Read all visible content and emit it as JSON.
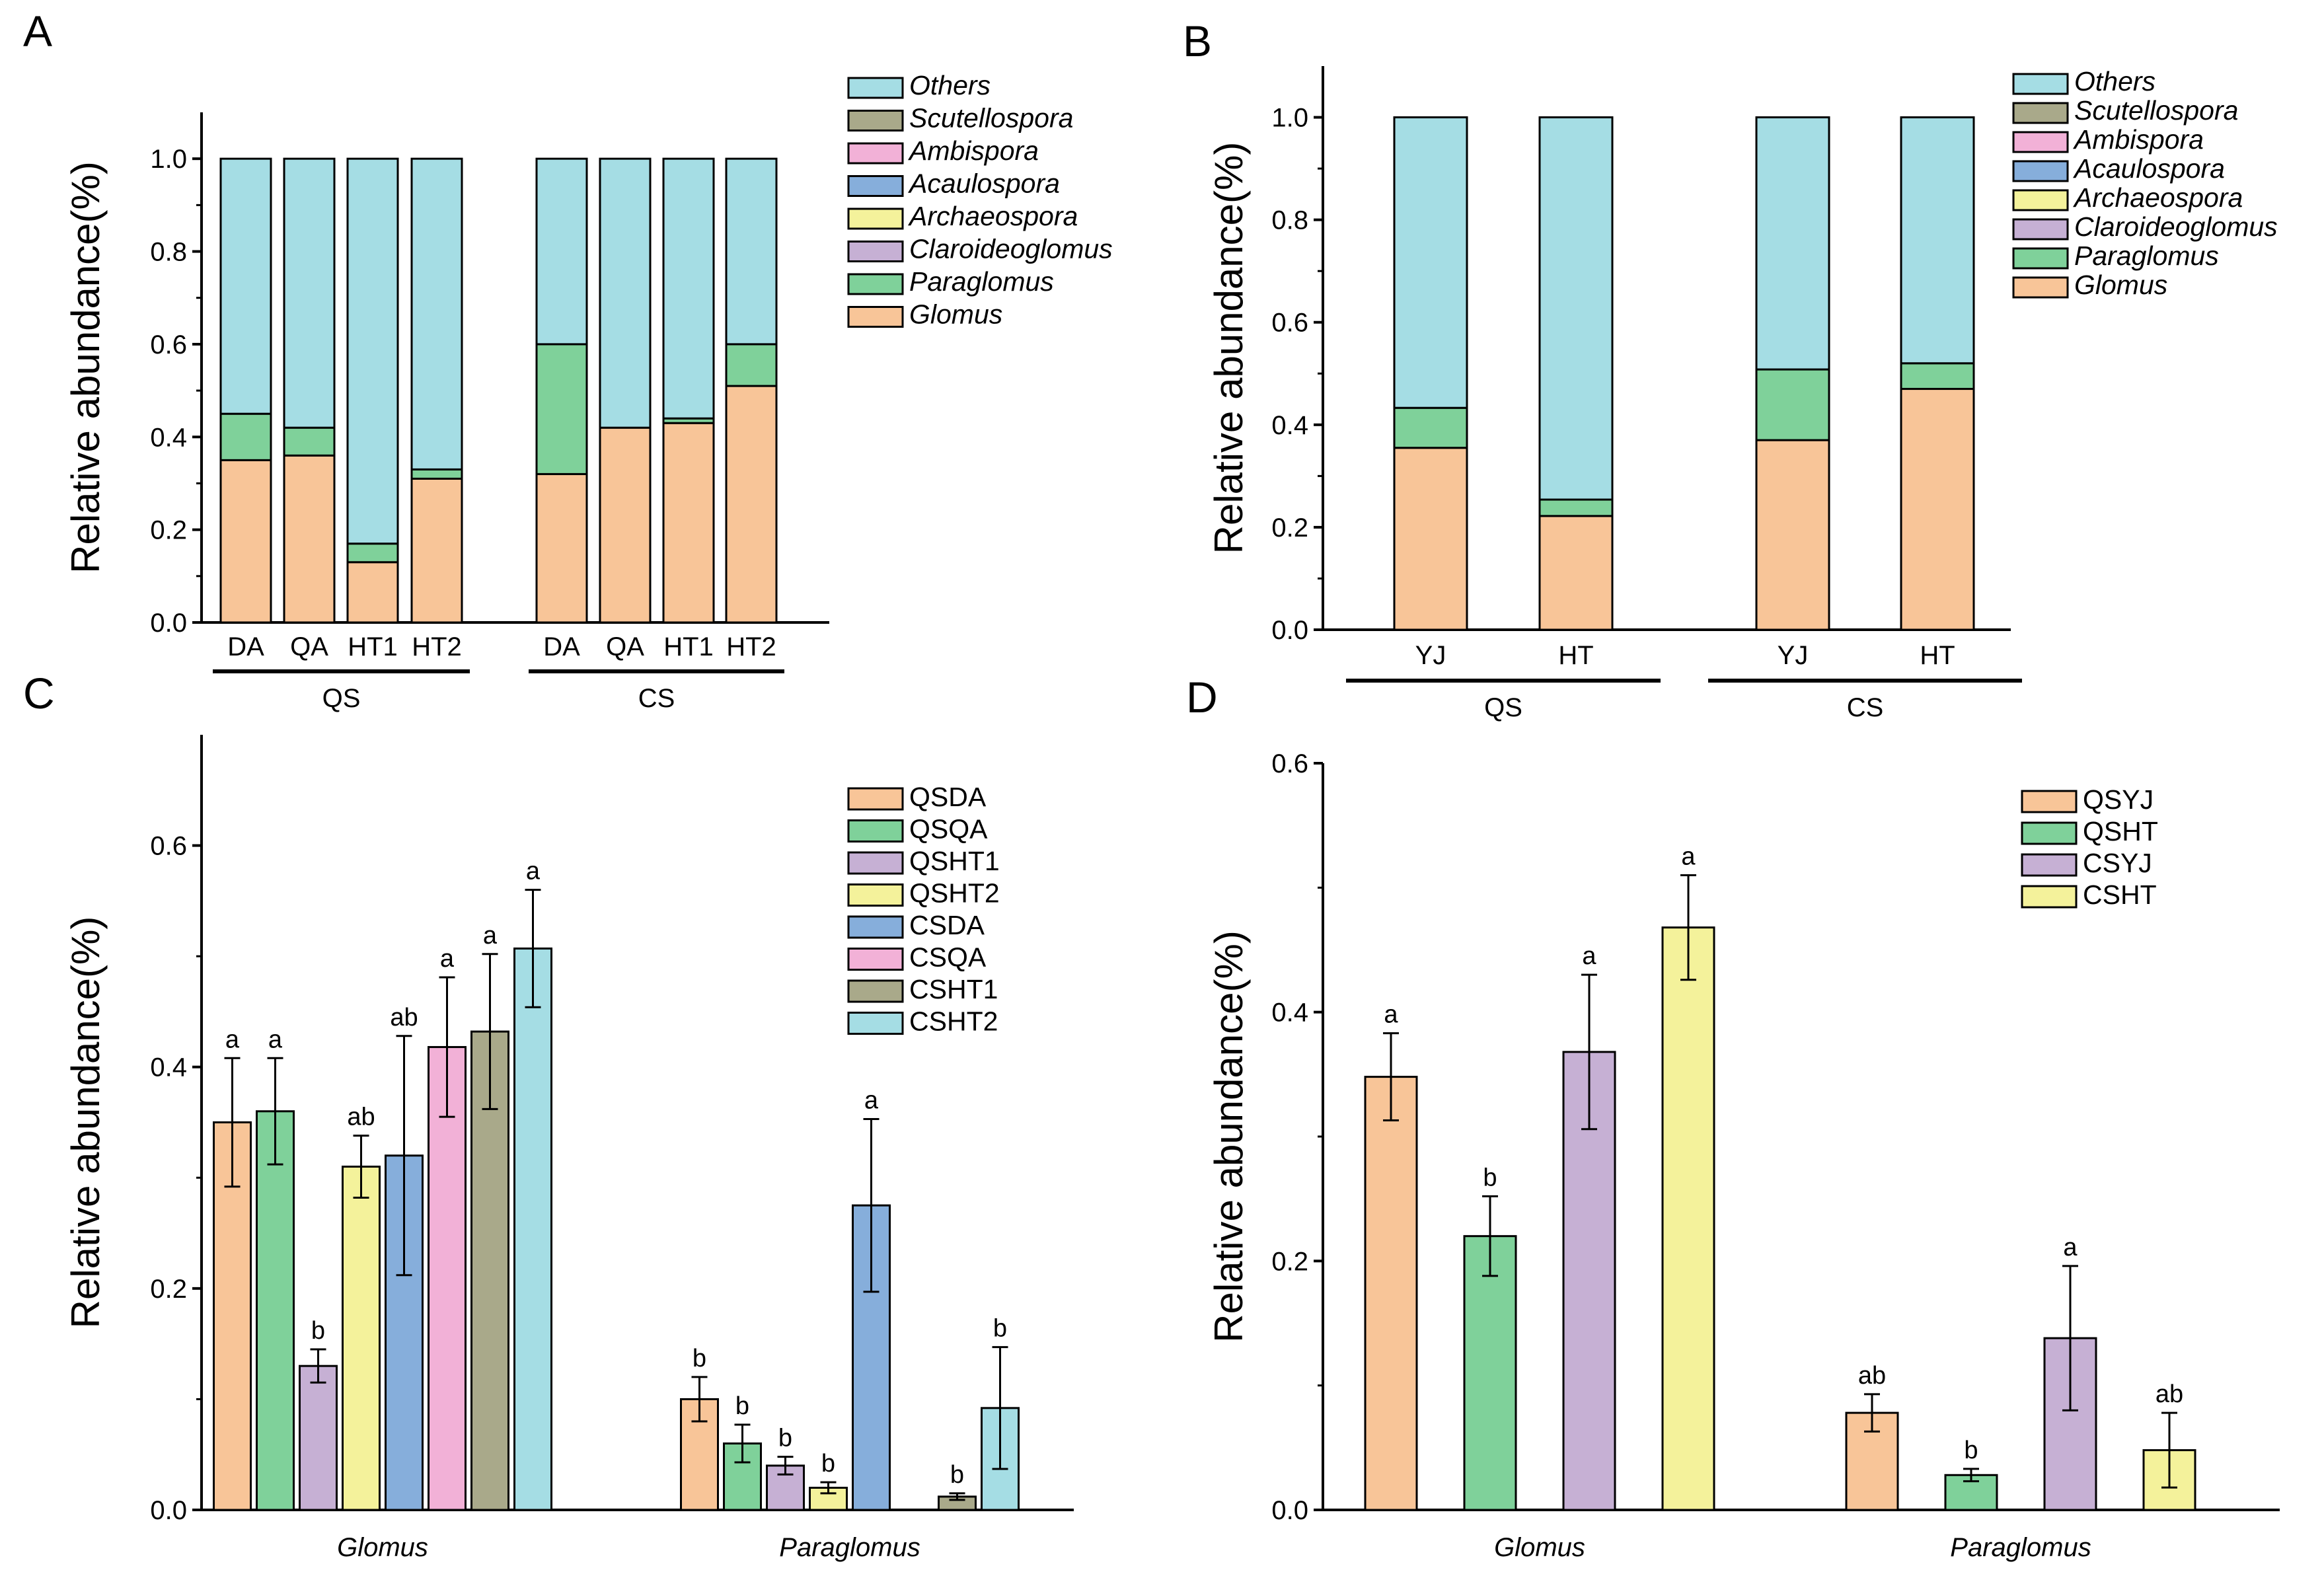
{
  "colors": {
    "Others": "#a5dde4",
    "Scutellospora": "#a9a98a",
    "Ambispora": "#f2b1d7",
    "Acaulospora": "#86aedb",
    "Archaeospora": "#f4f29b",
    "Claroideoglomus": "#c6b0d4",
    "Paraglomus": "#7fd19a",
    "Glomus": "#f8c598",
    "QSDA": "#f8c598",
    "QSQA": "#7fd19a",
    "QSHT1": "#c6b0d4",
    "QSHT2": "#f4f29b",
    "CSDA": "#86aedb",
    "CSQA": "#f2b1d7",
    "CSHT1": "#a9a98a",
    "CSHT2": "#a5dde4",
    "QSYJ": "#f8c598",
    "QSHT": "#7fd19a",
    "CSYJ": "#c6b0d4",
    "CSHT": "#f4f29b"
  },
  "chart_data": [
    {
      "panel": "A",
      "type": "bar",
      "stacked": true,
      "ylabel": "Relative abundance(%)",
      "ylim": [
        0,
        1.1
      ],
      "yticks": [
        "0.0",
        "0.2",
        "0.4",
        "0.6",
        "0.8",
        "1.0"
      ],
      "categories": [
        "DA",
        "QA",
        "HT1",
        "HT2",
        "DA",
        "QA",
        "HT1",
        "HT2"
      ],
      "groups": [
        {
          "name": "QS",
          "from": 0,
          "to": 3
        },
        {
          "name": "CS",
          "from": 4,
          "to": 7
        }
      ],
      "legend": [
        "Others",
        "Scutellospora",
        "Ambispora",
        "Acaulospora",
        "Archaeospora",
        "Claroideoglomus",
        "Paraglomus",
        "Glomus"
      ],
      "series": [
        {
          "name": "Glomus",
          "values": [
            0.35,
            0.36,
            0.13,
            0.31,
            0.32,
            0.42,
            0.43,
            0.51
          ]
        },
        {
          "name": "Paraglomus",
          "values": [
            0.1,
            0.06,
            0.04,
            0.02,
            0.28,
            0.0,
            0.01,
            0.09
          ]
        },
        {
          "name": "Claroideoglomus",
          "values": [
            0,
            0,
            0,
            0,
            0,
            0,
            0,
            0
          ]
        },
        {
          "name": "Archaeospora",
          "values": [
            0,
            0,
            0,
            0,
            0,
            0,
            0,
            0
          ]
        },
        {
          "name": "Acaulospora",
          "values": [
            0,
            0,
            0,
            0,
            0,
            0,
            0,
            0
          ]
        },
        {
          "name": "Ambispora",
          "values": [
            0,
            0,
            0,
            0,
            0,
            0,
            0,
            0
          ]
        },
        {
          "name": "Scutellospora",
          "values": [
            0,
            0,
            0,
            0,
            0,
            0,
            0,
            0
          ]
        },
        {
          "name": "Others",
          "values": [
            0.55,
            0.58,
            0.83,
            0.67,
            0.4,
            0.58,
            0.56,
            0.4
          ]
        }
      ]
    },
    {
      "panel": "B",
      "type": "bar",
      "stacked": true,
      "ylabel": "Relative abundance(%)",
      "ylim": [
        0,
        1.1
      ],
      "yticks": [
        "0.0",
        "0.2",
        "0.4",
        "0.6",
        "0.8",
        "1.0"
      ],
      "categories": [
        "YJ",
        "HT",
        "YJ",
        "HT"
      ],
      "groups": [
        {
          "name": "QS",
          "from": 0,
          "to": 1
        },
        {
          "name": "CS",
          "from": 2,
          "to": 3
        }
      ],
      "legend": [
        "Others",
        "Scutellospora",
        "Ambispora",
        "Acaulospora",
        "Archaeospora",
        "Claroideoglomus",
        "Paraglomus",
        "Glomus"
      ],
      "series": [
        {
          "name": "Glomus",
          "values": [
            0.355,
            0.222,
            0.37,
            0.47
          ]
        },
        {
          "name": "Paraglomus",
          "values": [
            0.078,
            0.032,
            0.138,
            0.05
          ]
        },
        {
          "name": "Claroideoglomus",
          "values": [
            0,
            0,
            0,
            0
          ]
        },
        {
          "name": "Archaeospora",
          "values": [
            0,
            0,
            0,
            0
          ]
        },
        {
          "name": "Acaulospora",
          "values": [
            0,
            0,
            0,
            0
          ]
        },
        {
          "name": "Ambispora",
          "values": [
            0,
            0,
            0,
            0
          ]
        },
        {
          "name": "Scutellospora",
          "values": [
            0,
            0,
            0,
            0
          ]
        },
        {
          "name": "Others",
          "values": [
            0.567,
            0.746,
            0.492,
            0.48
          ]
        }
      ]
    },
    {
      "panel": "C",
      "type": "bar",
      "ylabel": "Relative abundance(%)",
      "ylim": [
        0,
        0.7
      ],
      "yticks": [
        "0.0",
        "0.2",
        "0.4",
        "0.6"
      ],
      "categories": [
        "Glomus",
        "Paraglomus"
      ],
      "series": [
        {
          "name": "QSDA",
          "values": [
            0.35,
            0.1
          ],
          "errors": [
            0.058,
            0.02
          ],
          "letters": [
            "a",
            "b"
          ]
        },
        {
          "name": "QSQA",
          "values": [
            0.36,
            0.06
          ],
          "errors": [
            0.048,
            0.017
          ],
          "letters": [
            "a",
            "b"
          ]
        },
        {
          "name": "QSHT1",
          "values": [
            0.13,
            0.04
          ],
          "errors": [
            0.015,
            0.008
          ],
          "letters": [
            "b",
            "b"
          ]
        },
        {
          "name": "QSHT2",
          "values": [
            0.31,
            0.02
          ],
          "errors": [
            0.028,
            0.005
          ],
          "letters": [
            "ab",
            "b"
          ]
        },
        {
          "name": "CSDA",
          "values": [
            0.32,
            0.275
          ],
          "errors": [
            0.108,
            0.078
          ],
          "letters": [
            "ab",
            "a"
          ]
        },
        {
          "name": "CSQA",
          "values": [
            0.418,
            0.0
          ],
          "errors": [
            0.063,
            0.0
          ],
          "letters": [
            "a",
            ""
          ]
        },
        {
          "name": "CSHT1",
          "values": [
            0.432,
            0.012
          ],
          "errors": [
            0.07,
            0.003
          ],
          "letters": [
            "a",
            "b"
          ]
        },
        {
          "name": "CSHT2",
          "values": [
            0.507,
            0.092
          ],
          "errors": [
            0.053,
            0.055
          ],
          "letters": [
            "a",
            "b"
          ]
        }
      ]
    },
    {
      "panel": "D",
      "type": "bar",
      "ylabel": "Relative abundance(%)",
      "ylim": [
        0,
        0.6
      ],
      "yticks": [
        "0.0",
        "0.2",
        "0.4",
        "0.6"
      ],
      "categories": [
        "Glomus",
        "Paraglomus"
      ],
      "series": [
        {
          "name": "QSYJ",
          "values": [
            0.348,
            0.078
          ],
          "errors": [
            0.035,
            0.015
          ],
          "letters": [
            "a",
            "ab"
          ]
        },
        {
          "name": "QSHT",
          "values": [
            0.22,
            0.028
          ],
          "errors": [
            0.032,
            0.005
          ],
          "letters": [
            "b",
            "b"
          ]
        },
        {
          "name": "CSYJ",
          "values": [
            0.368,
            0.138
          ],
          "errors": [
            0.062,
            0.058
          ],
          "letters": [
            "a",
            "a"
          ]
        },
        {
          "name": "CSHT",
          "values": [
            0.468,
            0.048
          ],
          "errors": [
            0.042,
            0.03
          ],
          "letters": [
            "a",
            "ab"
          ]
        }
      ]
    }
  ]
}
